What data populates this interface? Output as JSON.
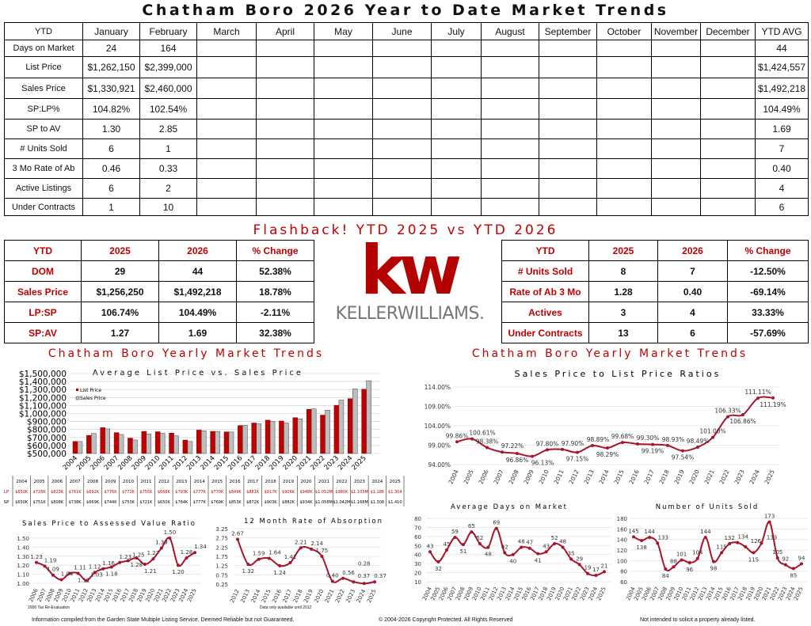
{
  "title": "Chatham Boro 2026 Year to Date Market Trends",
  "ytd_table": {
    "headers": [
      "YTD",
      "January",
      "February",
      "March",
      "April",
      "May",
      "June",
      "July",
      "August",
      "September",
      "October",
      "November",
      "December",
      "YTD AVG"
    ],
    "rows": [
      {
        "label": "Days on Market",
        "values": [
          "24",
          "164",
          "",
          "",
          "",
          "",
          "",
          "",
          "",
          "",
          "",
          "",
          "44"
        ]
      },
      {
        "label": "List Price",
        "values": [
          "$1,262,150",
          "$2,399,000",
          "",
          "",
          "",
          "",
          "",
          "",
          "",
          "",
          "",
          "",
          "$1,424,557"
        ]
      },
      {
        "label": "Sales Price",
        "values": [
          "$1,330,921",
          "$2,460,000",
          "",
          "",
          "",
          "",
          "",
          "",
          "",
          "",
          "",
          "",
          "$1,492,218"
        ]
      },
      {
        "label": "SP:LP%",
        "values": [
          "104.82%",
          "102.54%",
          "",
          "",
          "",
          "",
          "",
          "",
          "",
          "",
          "",
          "",
          "104.49%"
        ]
      },
      {
        "label": "SP to AV",
        "values": [
          "1.30",
          "2.85",
          "",
          "",
          "",
          "",
          "",
          "",
          "",
          "",
          "",
          "",
          "1.69"
        ]
      },
      {
        "label": "# Units Sold",
        "values": [
          "6",
          "1",
          "",
          "",
          "",
          "",
          "",
          "",
          "",
          "",
          "",
          "",
          "7"
        ]
      },
      {
        "label": "3 Mo Rate of Ab",
        "values": [
          "0.46",
          "0.33",
          "",
          "",
          "",
          "",
          "",
          "",
          "",
          "",
          "",
          "",
          "0.40"
        ]
      },
      {
        "label": "Active Listings",
        "values": [
          "6",
          "2",
          "",
          "",
          "",
          "",
          "",
          "",
          "",
          "",
          "",
          "",
          "4"
        ]
      },
      {
        "label": "Under Contracts",
        "values": [
          "1",
          "10",
          "",
          "",
          "",
          "",
          "",
          "",
          "",
          "",
          "",
          "",
          "6"
        ]
      }
    ]
  },
  "flashback_title": "Flashback!  YTD 2025 vs YTD 2026",
  "flash_left": [
    [
      "YTD",
      "2025",
      "2026",
      "% Change"
    ],
    [
      "DOM",
      "29",
      "44",
      "52.38%"
    ],
    [
      "Sales Price",
      "$1,256,250",
      "$1,492,218",
      "18.78%"
    ],
    [
      "LP:SP",
      "106.74%",
      "104.49%",
      "-2.11%"
    ],
    [
      "SP:AV",
      "1.27",
      "1.69",
      "32.38%"
    ]
  ],
  "flash_right": [
    [
      "YTD",
      "2025",
      "2026",
      "% Change"
    ],
    [
      "# Units Sold",
      "8",
      "7",
      "-12.50%"
    ],
    [
      "Rate of Ab 3 Mo",
      "1.28",
      "0.40",
      "-69.14%"
    ],
    [
      "Actives",
      "3",
      "4",
      "33.33%"
    ],
    [
      "Under Contracts",
      "13",
      "6",
      "-57.69%"
    ]
  ],
  "logo": {
    "mark": "kw",
    "name": "KELLERWILLIAMS."
  },
  "section_left": "Chatham Boro Yearly Market Trends",
  "section_right": "Chatham Boro Yearly Market Trends",
  "colors": {
    "accent": "#c00000",
    "line": "#a8142a",
    "bar_lp": "#c00000",
    "bar_sp": "#bdbdbd"
  },
  "chart_data": [
    {
      "type": "bar",
      "title": "Average List Price vs. Sales Price",
      "categories": [
        "2004",
        "2005",
        "2006",
        "2007",
        "2008",
        "2009",
        "2010",
        "2011",
        "2012",
        "2013",
        "2014",
        "2015",
        "2016",
        "2017",
        "2018",
        "2019",
        "2020",
        "2021",
        "2022",
        "2023",
        "2024",
        "2025"
      ],
      "series": [
        {
          "name": "List Price",
          "values": [
            650000,
            726000,
            823000,
            761000,
            692000,
            776000,
            772000,
            755000,
            668000,
            793000,
            777000,
            770000,
            849000,
            881000,
            917000,
            906000,
            948000,
            1052000,
            980000,
            1103000,
            1186000,
            1304000
          ]
        },
        {
          "name": "Sales Price",
          "values": [
            650000,
            751000,
            808000,
            738000,
            669000,
            744000,
            753000,
            721000,
            650000,
            784000,
            777000,
            769000,
            853000,
            872000,
            903000,
            882000,
            934000,
            1058000,
            1042000,
            1168000,
            1308000,
            1410000
          ]
        }
      ],
      "ylim": [
        500000,
        1500000
      ],
      "yticks": [
        "$500,000",
        "$600,000",
        "$700,000",
        "$800,000",
        "$900,000",
        "$1,000,000",
        "$1,100,000",
        "$1,200,000",
        "$1,300,000",
        "$1,400,000",
        "$1,500,000"
      ],
      "legend": "top-left",
      "table": {
        "row_labels": [
          "LP",
          "SP"
        ],
        "lp": [
          "$650K",
          "$726K",
          "$823K",
          "$761K",
          "$692K",
          "$776K",
          "$772K",
          "$755K",
          "$668K",
          "$793K",
          "$777K",
          "$770K",
          "$849K",
          "$881K",
          "$917K",
          "$906K",
          "$948K",
          "$1.052M",
          "$980K",
          "$1.103M",
          "$1.186",
          "$1.304"
        ],
        "sp": [
          "$650K",
          "$751K",
          "$808K",
          "$738K",
          "$669K",
          "$744K",
          "$753K",
          "$721K",
          "$650K",
          "$784K",
          "$777K",
          "$769K",
          "$853K",
          "$872K",
          "$903K",
          "$882K",
          "$934K",
          "$1.058M",
          "$1.042M",
          "$1.168M",
          "$1.308",
          "$1.410"
        ]
      }
    },
    {
      "type": "line",
      "title": "Sales Price to List Price Ratios",
      "categories": [
        "2004",
        "2005",
        "2006",
        "2007",
        "2008",
        "2009",
        "2010",
        "2011",
        "2012",
        "2013",
        "2014",
        "2015",
        "2016",
        "2017",
        "2018",
        "2019",
        "2020",
        "2021",
        "2022",
        "2023",
        "2024",
        "2025"
      ],
      "values": [
        99.86,
        100.61,
        98.38,
        97.22,
        96.86,
        96.13,
        97.8,
        97.9,
        97.15,
        98.89,
        98.29,
        99.68,
        99.3,
        99.19,
        98.93,
        97.54,
        98.49,
        101.0,
        106.33,
        106.86,
        111.11,
        111.19
      ],
      "labels": [
        "99.86%",
        "100.61%",
        "98.38%",
        "97.22%",
        "96.86%",
        "96.13%",
        "97.80%",
        "97.90%",
        "97.15%",
        "98.89%",
        "98.29%",
        "99.68%",
        "99.30%",
        "99.19%",
        "98.93%",
        "97.54%",
        "98.49%",
        "101.00%",
        "106.33%",
        "106.86%",
        "111.11%",
        "111.19%"
      ],
      "ylim": [
        94,
        114
      ],
      "yticks": [
        94,
        99,
        104,
        109,
        114
      ],
      "ytick_labels": [
        "94.00%",
        "99.00%",
        "104.00%",
        "109.00%",
        "114.00%"
      ],
      "grid": true
    },
    {
      "type": "line",
      "title": "Sales Price to Assessed Value Ratio",
      "note": "2006 Tax Re-Evaluation",
      "categories": [
        "2006",
        "2007",
        "2008",
        "2009",
        "2010",
        "2011",
        "2012",
        "2013",
        "2014",
        "2015",
        "2016",
        "2017",
        "2018",
        "2019",
        "2020",
        "2021",
        "2022",
        "2023",
        "2024",
        "2025"
      ],
      "values": [
        1.23,
        1.19,
        1.09,
        1.04,
        1.11,
        1.11,
        1.03,
        1.12,
        1.16,
        1.18,
        1.23,
        1.25,
        1.28,
        1.21,
        1.27,
        1.39,
        1.5,
        1.2,
        1.28,
        1.34
      ],
      "labels": [
        "1.23",
        "1.19",
        "1.09",
        "1.04",
        "1.11",
        "1.11",
        "1.03",
        "1.12",
        "1.16",
        "1.18",
        "1.23",
        "1.25",
        "1.28",
        "1.21",
        "1.27",
        "1.39",
        "1.50",
        "1.20",
        "1.28",
        "1.34"
      ],
      "ylim": [
        1.0,
        1.5
      ],
      "yticks": [
        1.0,
        1.1,
        1.2,
        1.3,
        1.4,
        1.5
      ],
      "ytick_labels": [
        "1.00",
        "1.10",
        "1.20",
        "1.30",
        "1.40",
        "1.50"
      ],
      "grid": true
    },
    {
      "type": "line",
      "title": "12 Month Rate of Absorption",
      "note": "Data only available until 2012",
      "categories": [
        "2012",
        "2013",
        "2014",
        "2015",
        "2016",
        "2017",
        "2018",
        "2019",
        "2020",
        "2021",
        "2022",
        "2023",
        "2024",
        "2025"
      ],
      "values": [
        2.67,
        1.32,
        1.59,
        1.64,
        1.24,
        1.41,
        2.21,
        2.14,
        1.75,
        0.4,
        0.56,
        0.37,
        0.28,
        0.37
      ],
      "labels": [
        "2.67",
        "1.32",
        "1.59",
        "1.64",
        "1.24",
        "1.41",
        "2.21",
        "2.14",
        "1.75",
        "0.40",
        "0.56",
        "0.37",
        "0.28",
        "0.37"
      ],
      "ylim": [
        0.25,
        3.25
      ],
      "yticks": [
        0.25,
        0.75,
        1.25,
        1.75,
        2.25,
        2.75,
        3.25
      ],
      "ytick_labels": [
        "0.25",
        "0.75",
        "1.25",
        "1.75",
        "2.25",
        "2.75",
        "3.25"
      ],
      "grid": true
    },
    {
      "type": "line",
      "title": "Average Days on Market",
      "categories": [
        "2004",
        "2005",
        "2006",
        "2007",
        "2008",
        "2009",
        "2010",
        "2011",
        "2012",
        "2013",
        "2014",
        "2015",
        "2016",
        "2017",
        "2018",
        "2019",
        "2020",
        "2021",
        "2022",
        "2023",
        "2024",
        "2025"
      ],
      "values": [
        43,
        32,
        45,
        59,
        51,
        65,
        52,
        48,
        69,
        42,
        40,
        48,
        47,
        41,
        43,
        52,
        48,
        35,
        29,
        19,
        17,
        21
      ],
      "labels": [
        "43",
        "32",
        "45",
        "59",
        "51",
        "65",
        "52",
        "48",
        "69",
        "42",
        "40",
        "48",
        "47",
        "41",
        "43",
        "52",
        "48",
        "35",
        "29",
        "19",
        "17",
        "21"
      ],
      "ylim": [
        10,
        80
      ],
      "yticks": [
        10,
        20,
        30,
        40,
        50,
        60,
        70,
        80
      ],
      "ytick_labels": [
        "10",
        "20",
        "30",
        "40",
        "50",
        "60",
        "70",
        "80"
      ],
      "grid": true
    },
    {
      "type": "line",
      "title": "Number of Units Sold",
      "categories": [
        "2004",
        "2005",
        "2006",
        "2007",
        "2008",
        "2009",
        "2010",
        "2011",
        "2012",
        "2013",
        "2014",
        "2015",
        "2016",
        "2017",
        "2018",
        "2019",
        "2020",
        "2021",
        "2022",
        "2023",
        "2024",
        "2025"
      ],
      "values": [
        145,
        138,
        144,
        133,
        84,
        88,
        101,
        96,
        104,
        144,
        98,
        115,
        132,
        134,
        126,
        115,
        133,
        173,
        105,
        92,
        85,
        94
      ],
      "labels": [
        "145",
        "138",
        "144",
        "133",
        "84",
        "88",
        "101",
        "96",
        "104",
        "144",
        "98",
        "115",
        "132",
        "134",
        "126",
        "115",
        "133",
        "173",
        "105",
        "92",
        "85",
        "94"
      ],
      "ylim": [
        60,
        180
      ],
      "yticks": [
        60,
        80,
        100,
        120,
        140,
        160,
        180
      ],
      "ytick_labels": [
        "60",
        "80",
        "100",
        "120",
        "140",
        "160",
        "180"
      ],
      "grid": true
    }
  ],
  "footer": {
    "left": "Information compiled from the Garden State Multiple Listing Service.  Deemed Reliable but not Guaranteed.",
    "center": "© 2004-2026 Copyright Protected.  All Rights Reserved",
    "right": "Not intended to solicit a property already listed."
  }
}
